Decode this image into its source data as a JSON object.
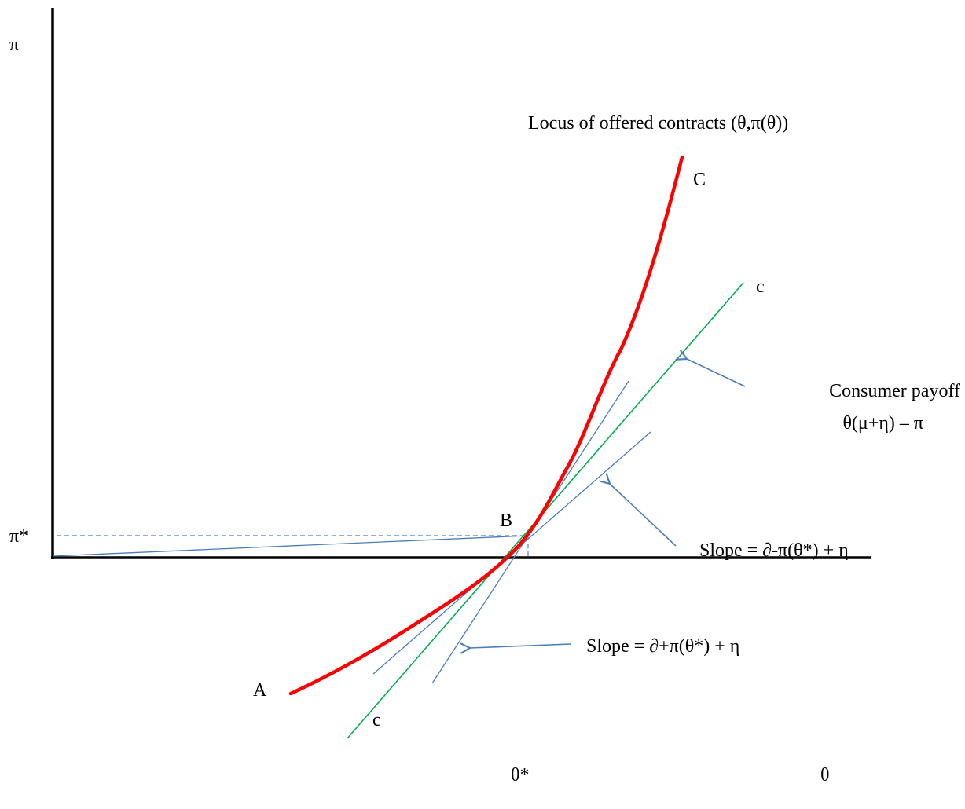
{
  "labels": {
    "y_axis": "π",
    "x_axis": "θ",
    "pi_star": "π*",
    "theta_star": "θ*",
    "point_a": "A",
    "point_b": "B",
    "point_c": "C",
    "c_upper": "c",
    "c_lower": "c",
    "locus": "Locus of offered contracts (θ,π(θ))",
    "consumer_payoff_line1": "Consumer payoff",
    "consumer_payoff_line2": "θ(μ+η) – π",
    "slope_minus": "Slope = ∂-π(θ*) + η",
    "slope_plus": "Slope = ∂+π(θ*) + η"
  },
  "colors": {
    "axis": "#000000",
    "locus_curve": "#ff0000",
    "indifference_line": "#00b050",
    "tangent_lines": "#4a7ebb",
    "guide_lines": "#4a7ebb",
    "arrows": "#4a7ebb"
  }
}
